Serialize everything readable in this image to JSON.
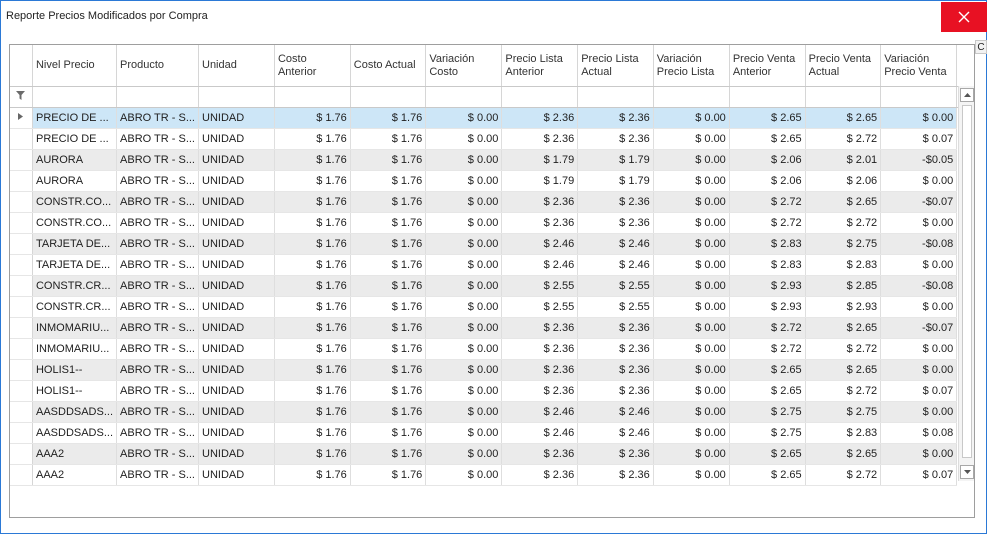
{
  "window": {
    "title": "Reporte Precios Modificados por Compra"
  },
  "colors": {
    "close": "#e81123",
    "selected_row": "#cde6f7",
    "alt_row": "#ebebeb"
  },
  "icons": {
    "close": "close-icon",
    "filter": "filter-icon",
    "row_indicator": "row-indicator-icon",
    "scroll_up": "scroll-up-icon",
    "scroll_down": "scroll-down-icon"
  },
  "edge_label": "C",
  "columns": [
    "Nivel Precio",
    "Producto",
    "Unidad",
    "Costo Anterior",
    "Costo Actual",
    "Variación Costo",
    "Precio Lista Anterior",
    "Precio Lista Actual",
    "Variación Precio Lista",
    "Precio Venta Anterior",
    "Precio Venta Actual",
    "Variación Precio Venta"
  ],
  "rows": [
    [
      "PRECIO DE ...",
      "ABRO TR - S...",
      "UNIDAD",
      "$ 1.76",
      "$ 1.76",
      "$ 0.00",
      "$ 2.36",
      "$ 2.36",
      "$ 0.00",
      "$ 2.65",
      "$ 2.65",
      "$ 0.00"
    ],
    [
      "PRECIO DE ...",
      "ABRO TR - S...",
      "UNIDAD",
      "$ 1.76",
      "$ 1.76",
      "$ 0.00",
      "$ 2.36",
      "$ 2.36",
      "$ 0.00",
      "$ 2.65",
      "$ 2.72",
      "$ 0.07"
    ],
    [
      "AURORA",
      "ABRO TR - S...",
      "UNIDAD",
      "$ 1.76",
      "$ 1.76",
      "$ 0.00",
      "$ 1.79",
      "$ 1.79",
      "$ 0.00",
      "$ 2.06",
      "$ 2.01",
      "-$0.05"
    ],
    [
      "AURORA",
      "ABRO TR - S...",
      "UNIDAD",
      "$ 1.76",
      "$ 1.76",
      "$ 0.00",
      "$ 1.79",
      "$ 1.79",
      "$ 0.00",
      "$ 2.06",
      "$ 2.06",
      "$ 0.00"
    ],
    [
      "CONSTR.CO...",
      "ABRO TR - S...",
      "UNIDAD",
      "$ 1.76",
      "$ 1.76",
      "$ 0.00",
      "$ 2.36",
      "$ 2.36",
      "$ 0.00",
      "$ 2.72",
      "$ 2.65",
      "-$0.07"
    ],
    [
      "CONSTR.CO...",
      "ABRO TR - S...",
      "UNIDAD",
      "$ 1.76",
      "$ 1.76",
      "$ 0.00",
      "$ 2.36",
      "$ 2.36",
      "$ 0.00",
      "$ 2.72",
      "$ 2.72",
      "$ 0.00"
    ],
    [
      "TARJETA DE...",
      "ABRO TR - S...",
      "UNIDAD",
      "$ 1.76",
      "$ 1.76",
      "$ 0.00",
      "$ 2.46",
      "$ 2.46",
      "$ 0.00",
      "$ 2.83",
      "$ 2.75",
      "-$0.08"
    ],
    [
      "TARJETA DE...",
      "ABRO TR - S...",
      "UNIDAD",
      "$ 1.76",
      "$ 1.76",
      "$ 0.00",
      "$ 2.46",
      "$ 2.46",
      "$ 0.00",
      "$ 2.83",
      "$ 2.83",
      "$ 0.00"
    ],
    [
      "CONSTR.CR...",
      "ABRO TR - S...",
      "UNIDAD",
      "$ 1.76",
      "$ 1.76",
      "$ 0.00",
      "$ 2.55",
      "$ 2.55",
      "$ 0.00",
      "$ 2.93",
      "$ 2.85",
      "-$0.08"
    ],
    [
      "CONSTR.CR...",
      "ABRO TR - S...",
      "UNIDAD",
      "$ 1.76",
      "$ 1.76",
      "$ 0.00",
      "$ 2.55",
      "$ 2.55",
      "$ 0.00",
      "$ 2.93",
      "$ 2.93",
      "$ 0.00"
    ],
    [
      "INMOMARIU...",
      "ABRO TR - S...",
      "UNIDAD",
      "$ 1.76",
      "$ 1.76",
      "$ 0.00",
      "$ 2.36",
      "$ 2.36",
      "$ 0.00",
      "$ 2.72",
      "$ 2.65",
      "-$0.07"
    ],
    [
      "INMOMARIU...",
      "ABRO TR - S...",
      "UNIDAD",
      "$ 1.76",
      "$ 1.76",
      "$ 0.00",
      "$ 2.36",
      "$ 2.36",
      "$ 0.00",
      "$ 2.72",
      "$ 2.72",
      "$ 0.00"
    ],
    [
      "HOLIS1--",
      "ABRO TR - S...",
      "UNIDAD",
      "$ 1.76",
      "$ 1.76",
      "$ 0.00",
      "$ 2.36",
      "$ 2.36",
      "$ 0.00",
      "$ 2.65",
      "$ 2.65",
      "$ 0.00"
    ],
    [
      "HOLIS1--",
      "ABRO TR - S...",
      "UNIDAD",
      "$ 1.76",
      "$ 1.76",
      "$ 0.00",
      "$ 2.36",
      "$ 2.36",
      "$ 0.00",
      "$ 2.65",
      "$ 2.72",
      "$ 0.07"
    ],
    [
      "AASDDSADS...",
      "ABRO TR - S...",
      "UNIDAD",
      "$ 1.76",
      "$ 1.76",
      "$ 0.00",
      "$ 2.46",
      "$ 2.46",
      "$ 0.00",
      "$ 2.75",
      "$ 2.75",
      "$ 0.00"
    ],
    [
      "AASDDSADS...",
      "ABRO TR - S...",
      "UNIDAD",
      "$ 1.76",
      "$ 1.76",
      "$ 0.00",
      "$ 2.46",
      "$ 2.46",
      "$ 0.00",
      "$ 2.75",
      "$ 2.83",
      "$ 0.08"
    ],
    [
      "AAA2",
      "ABRO TR - S...",
      "UNIDAD",
      "$ 1.76",
      "$ 1.76",
      "$ 0.00",
      "$ 2.36",
      "$ 2.36",
      "$ 0.00",
      "$ 2.65",
      "$ 2.65",
      "$ 0.00"
    ],
    [
      "AAA2",
      "ABRO TR - S...",
      "UNIDAD",
      "$ 1.76",
      "$ 1.76",
      "$ 0.00",
      "$ 2.36",
      "$ 2.36",
      "$ 0.00",
      "$ 2.65",
      "$ 2.72",
      "$ 0.07"
    ]
  ]
}
